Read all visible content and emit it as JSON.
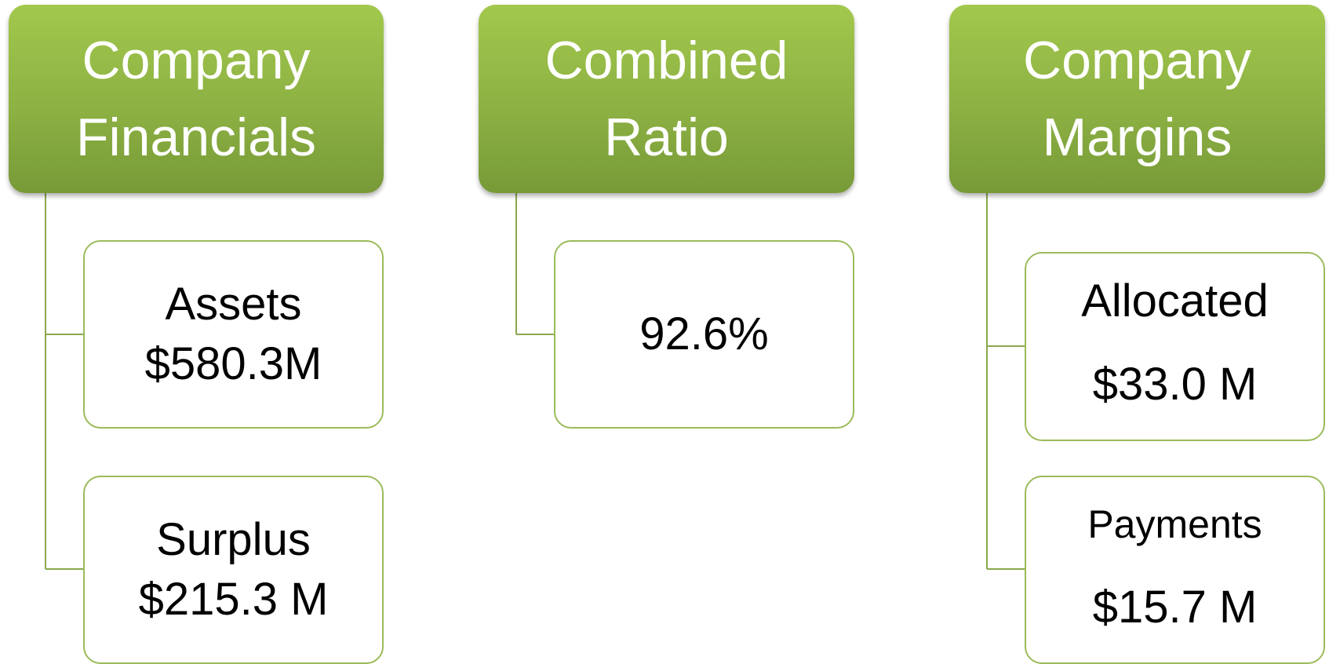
{
  "groups": [
    {
      "title": "Company Financials",
      "items": [
        {
          "label": "Assets",
          "value": "$580.3M"
        },
        {
          "label": "Surplus",
          "value": "$215.3 M"
        }
      ]
    },
    {
      "title": "Combined Ratio",
      "items": [
        {
          "value": "92.6%"
        }
      ]
    },
    {
      "title": "Company Margins",
      "items": [
        {
          "label": "Allocated",
          "value": "$33.0 M"
        },
        {
          "label": "Payments",
          "value": "$15.7 M"
        }
      ]
    }
  ]
}
